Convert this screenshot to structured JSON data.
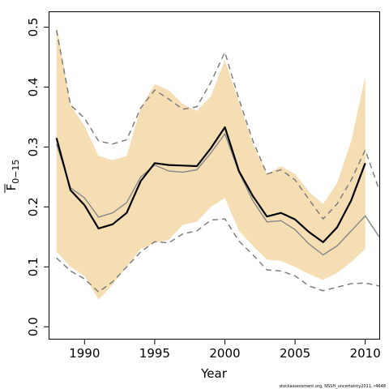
{
  "chart_data": {
    "type": "line",
    "xlabel": "Year",
    "ylabel": {
      "main": "F",
      "subscript": "0−15"
    },
    "credit": "stockassessment.org, NSSH_uncertainty2011, r4648",
    "xlim": [
      1987.5,
      2011.0
    ],
    "ylim": [
      -0.02,
      0.525
    ],
    "x_ticks": [
      1990,
      1995,
      2000,
      2005,
      2010
    ],
    "y_ticks": [
      0.0,
      0.1,
      0.2,
      0.3,
      0.4,
      0.5
    ],
    "y_tick_labels": [
      "0.0",
      "0.1",
      "0.2",
      "0.3",
      "0.4",
      "0.5"
    ],
    "grid": false,
    "x": [
      1988,
      1989,
      1990,
      1991,
      1992,
      1993,
      1994,
      1995,
      1996,
      1997,
      1998,
      1999,
      2000,
      2001,
      2002,
      2003,
      2004,
      2005,
      2006,
      2007,
      2008,
      2009,
      2010,
      2011
    ],
    "series": [
      {
        "role": "band_upper",
        "color": "#f5deb3",
        "values": [
          0.505,
          0.37,
          0.335,
          0.285,
          0.278,
          0.285,
          0.365,
          0.405,
          0.395,
          0.372,
          0.36,
          0.385,
          0.445,
          0.375,
          0.305,
          0.255,
          0.268,
          0.255,
          0.225,
          0.205,
          0.24,
          0.31,
          0.418,
          null
        ]
      },
      {
        "role": "band_lower",
        "color": "#f5deb3",
        "values": [
          0.125,
          0.1,
          0.085,
          0.045,
          0.07,
          0.1,
          0.13,
          0.14,
          0.145,
          0.17,
          0.175,
          0.2,
          0.215,
          0.16,
          0.135,
          0.112,
          0.11,
          0.1,
          0.088,
          0.078,
          0.09,
          0.108,
          0.13,
          null
        ]
      },
      {
        "role": "estimate",
        "color": "#000000",
        "values": [
          0.315,
          0.228,
          0.203,
          0.164,
          0.171,
          0.19,
          0.243,
          0.273,
          0.27,
          0.269,
          0.268,
          0.298,
          0.333,
          0.26,
          0.218,
          0.184,
          0.19,
          0.179,
          0.158,
          0.141,
          0.166,
          0.211,
          0.273,
          null
        ]
      },
      {
        "role": "upper_dashed",
        "color": "#777777",
        "values": [
          0.495,
          0.37,
          0.348,
          0.31,
          0.305,
          0.312,
          0.365,
          0.395,
          0.38,
          0.363,
          0.367,
          0.408,
          0.458,
          0.38,
          0.31,
          0.255,
          0.262,
          0.245,
          0.212,
          0.18,
          0.205,
          0.245,
          0.295,
          0.228
        ]
      },
      {
        "role": "grey_line",
        "color": "#888888",
        "values": [
          0.305,
          0.232,
          0.215,
          0.183,
          0.19,
          0.207,
          0.25,
          0.27,
          0.26,
          0.258,
          0.262,
          0.29,
          0.322,
          0.258,
          0.21,
          0.175,
          0.177,
          0.162,
          0.138,
          0.12,
          0.135,
          0.16,
          0.185,
          0.15
        ]
      },
      {
        "role": "lower_dashed",
        "color": "#777777",
        "values": [
          0.115,
          0.093,
          0.08,
          0.058,
          0.075,
          0.1,
          0.125,
          0.142,
          0.14,
          0.155,
          0.16,
          0.178,
          0.18,
          0.143,
          0.12,
          0.095,
          0.093,
          0.085,
          0.068,
          0.06,
          0.066,
          0.072,
          0.073,
          0.068
        ]
      }
    ]
  }
}
